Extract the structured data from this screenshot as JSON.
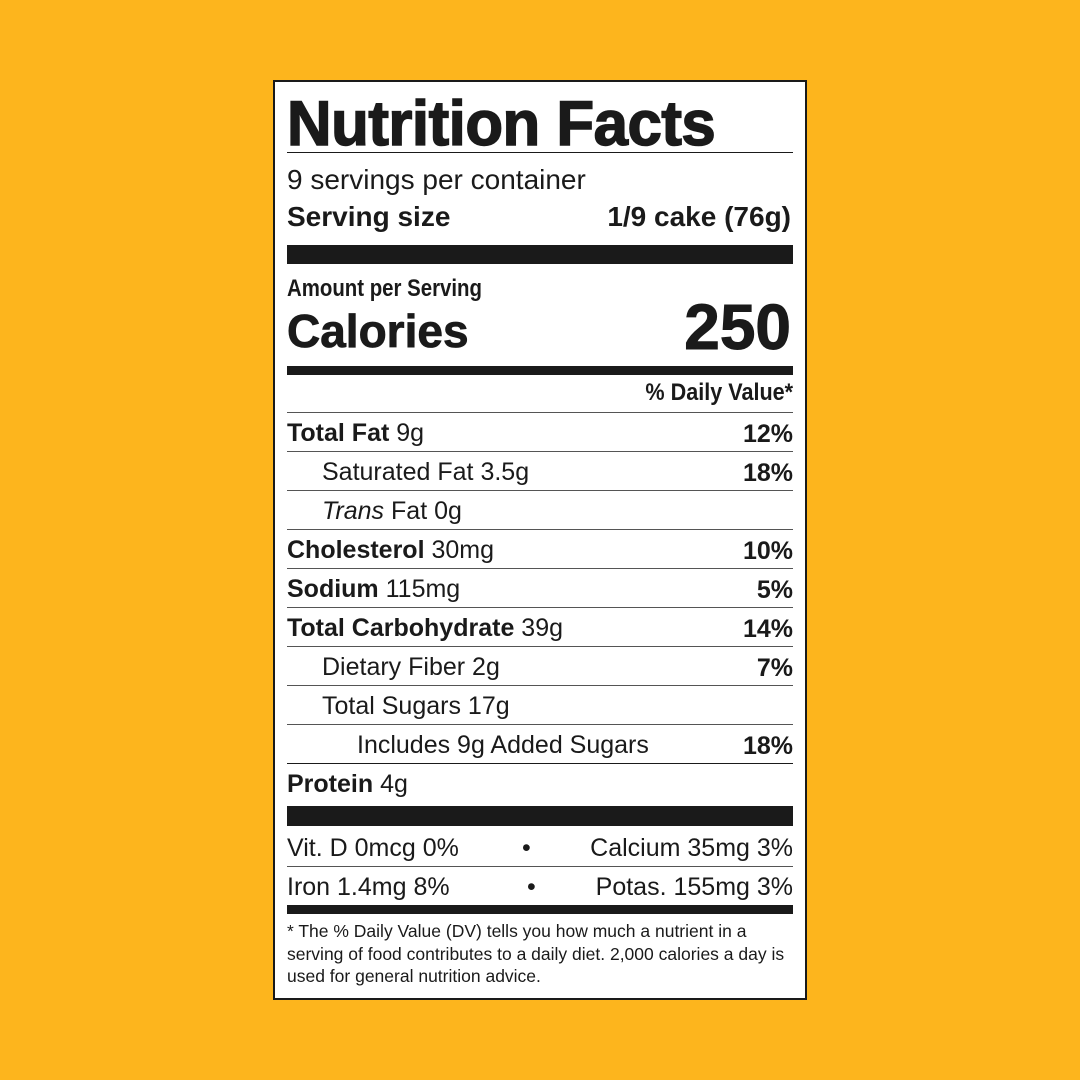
{
  "colors": {
    "background": "#FDB51D",
    "panel": "#FFFFFF",
    "ink": "#1A1A1A"
  },
  "title": "Nutrition Facts",
  "servings_per_container": "9 servings per container",
  "serving_size": {
    "label": "Serving size",
    "value": "1/9 cake (76g)"
  },
  "amount_per_serving": "Amount per Serving",
  "calories": {
    "label": "Calories",
    "value": "250"
  },
  "daily_value_header": "% Daily Value*",
  "nutrients": [
    {
      "name": "Total Fat",
      "amount": "9g",
      "dv": "12%"
    },
    {
      "name": "Saturated Fat",
      "amount": "3.5g",
      "dv": "18%"
    },
    {
      "name": "Trans",
      "suffix": "Fat",
      "amount": "0g",
      "dv": ""
    },
    {
      "name": "Cholesterol",
      "amount": "30mg",
      "dv": "10%"
    },
    {
      "name": "Sodium",
      "amount": "115mg",
      "dv": "5%"
    },
    {
      "name": "Total Carbohydrate",
      "amount": "39g",
      "dv": "14%"
    },
    {
      "name": "Dietary Fiber",
      "amount": "2g",
      "dv": "7%"
    },
    {
      "name": "Total Sugars",
      "amount": "17g",
      "dv": ""
    },
    {
      "name": "Includes 9g Added Sugars",
      "amount": "",
      "dv": "18%"
    },
    {
      "name": "Protein",
      "amount": "4g",
      "dv": ""
    }
  ],
  "minerals": [
    {
      "left": "Vit. D 0mcg 0%",
      "bullet": "•",
      "right": "Calcium  35mg 3%"
    },
    {
      "left": "Iron 1.4mg 8%",
      "bullet": "•",
      "right": "Potas. 155mg 3%"
    }
  ],
  "footnote": "* The % Daily Value (DV) tells you how much a nutrient in a serving of food contributes to a daily diet. 2,000 calories a day is used for general nutrition advice."
}
